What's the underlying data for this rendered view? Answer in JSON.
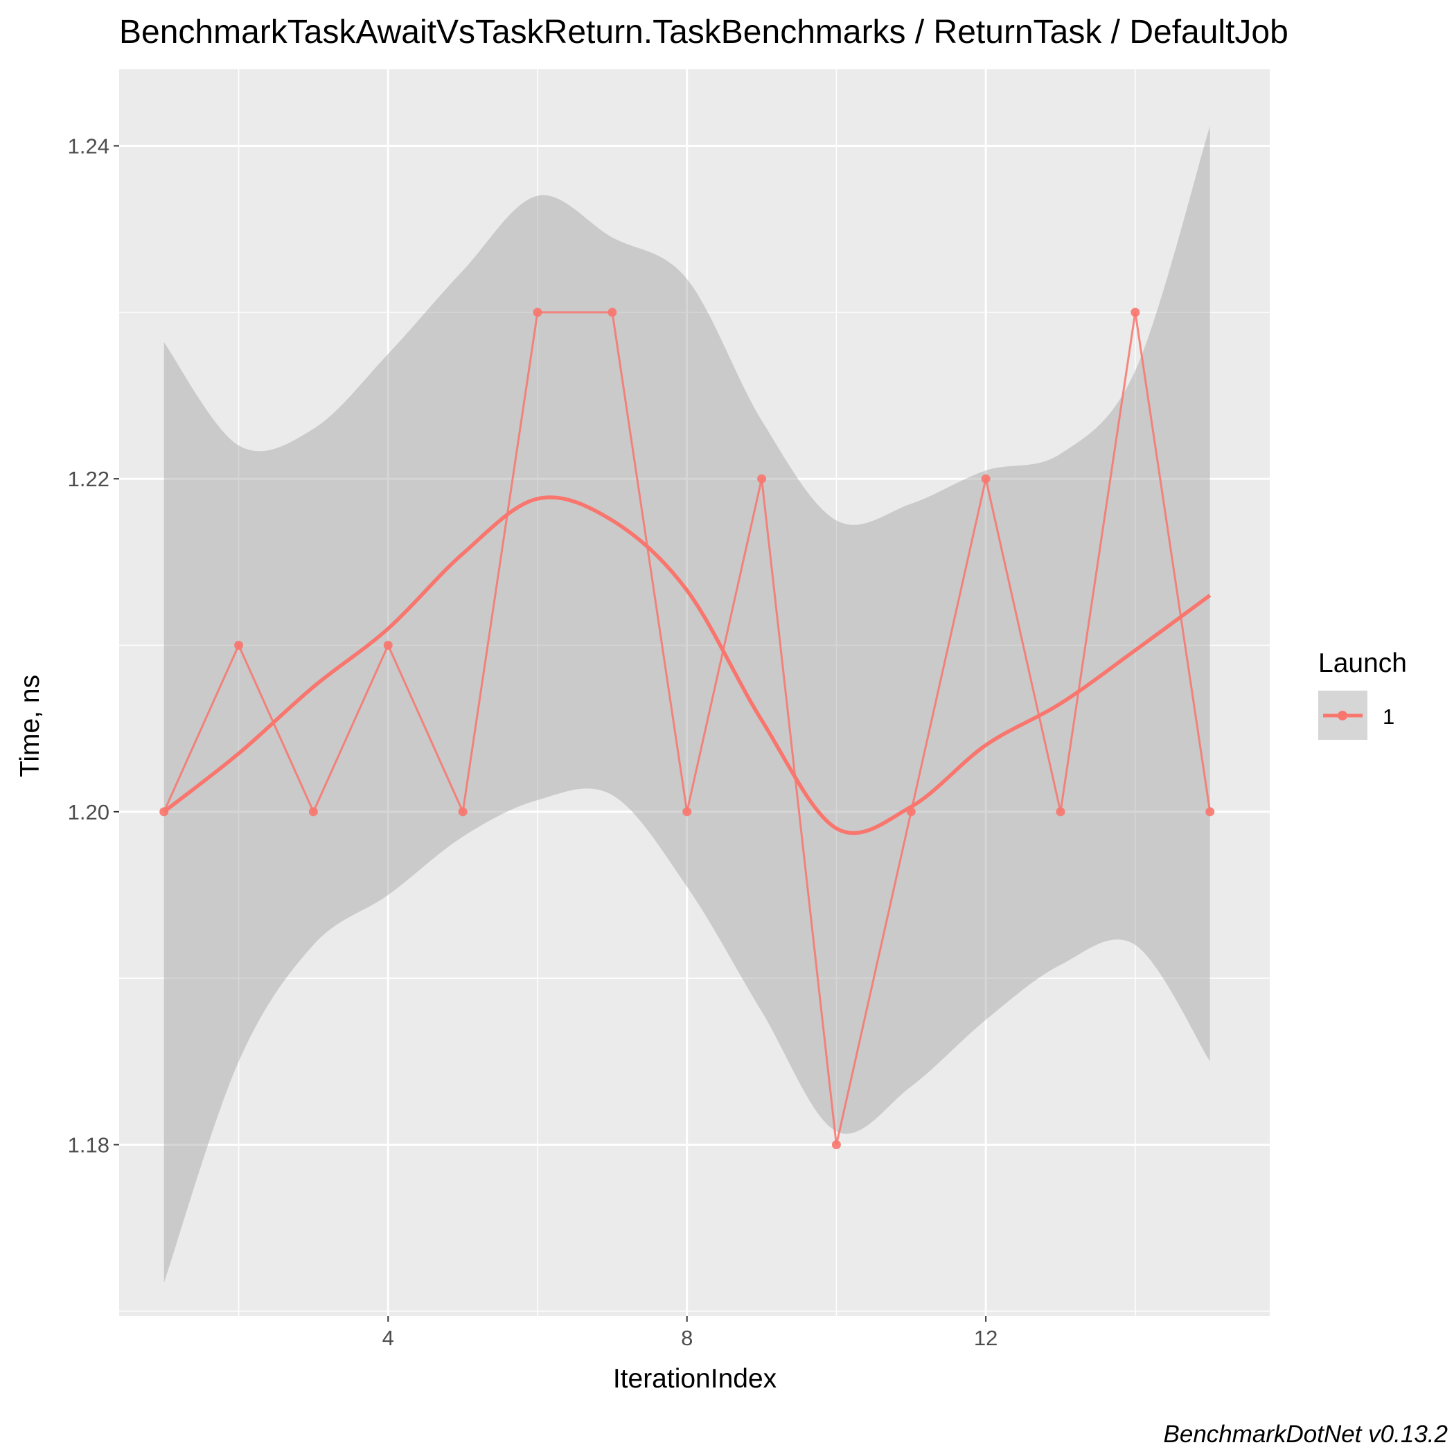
{
  "chart_data": {
    "type": "line",
    "title": "BenchmarkTaskAwaitVsTaskReturn.TaskBenchmarks / ReturnTask / DefaultJob",
    "xlabel": "IterationIndex",
    "ylabel": "Time, ns",
    "caption": "BenchmarkDotNet v0.13.2",
    "xlim": [
      0.4,
      15.8
    ],
    "ylim": [
      1.1697,
      1.2446
    ],
    "x_ticks": [
      4,
      8,
      12
    ],
    "y_ticks": [
      1.18,
      1.2,
      1.22,
      1.24
    ],
    "x_tick_labels": [
      "4",
      "8",
      "12"
    ],
    "y_tick_labels": [
      "1.18",
      "1.20",
      "1.22",
      "1.24"
    ],
    "grid": true,
    "legend": {
      "title": "Launch",
      "position": "right",
      "entries": [
        "1"
      ]
    },
    "series": [
      {
        "name": "1",
        "color": "#f8766d",
        "x": [
          1,
          2,
          3,
          4,
          5,
          6,
          7,
          8,
          9,
          10,
          11,
          12,
          13,
          14,
          15
        ],
        "values": [
          1.2,
          1.21,
          1.2,
          1.21,
          1.2,
          1.23,
          1.23,
          1.2,
          1.22,
          1.18,
          1.2,
          1.22,
          1.2,
          1.23,
          1.2
        ]
      }
    ],
    "smooth": {
      "color": "#f8766d",
      "band_color": "#999999",
      "x": [
        1,
        2,
        3,
        4,
        5,
        6,
        7,
        8,
        9,
        10,
        11,
        12,
        13,
        14,
        15
      ],
      "fit": [
        1.2,
        1.2035,
        1.2075,
        1.211,
        1.2155,
        1.2188,
        1.2175,
        1.2133,
        1.2055,
        1.199,
        1.2003,
        1.204,
        1.2065,
        1.2097,
        1.213
      ],
      "upper": [
        1.2282,
        1.222,
        1.223,
        1.2275,
        1.2325,
        1.237,
        1.2345,
        1.232,
        1.2235,
        1.2175,
        1.2185,
        1.2205,
        1.2215,
        1.2265,
        1.2412
      ],
      "lower": [
        1.1717,
        1.185,
        1.192,
        1.195,
        1.1985,
        1.2007,
        1.201,
        1.1955,
        1.188,
        1.1808,
        1.1835,
        1.1875,
        1.1908,
        1.192,
        1.185
      ]
    }
  }
}
